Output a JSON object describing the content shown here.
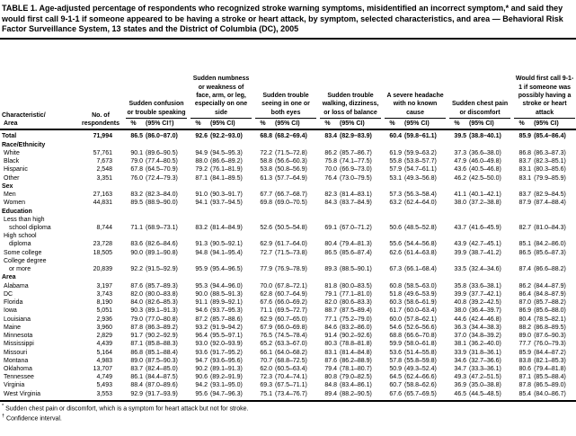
{
  "title": "TABLE 1. Age-adjusted percentage of respondents who recognized stroke warning symptoms, misidentified an incorrect symptom,* and said they would first call 9-1-1 if someone appeared to be having a stroke or heart attack, by symptom, selected characteristics, and area — Behavioral Risk Factor Surveillance System, 13 states and the District of Columbia (DC), 2005",
  "columns": {
    "stub": "Characteristic/\n Area",
    "respondents": "No. of\nrespondents",
    "groups": [
      {
        "label": "Sudden confusion or trouble speaking",
        "pct": "%",
        "ci": "(95% CI†)"
      },
      {
        "label": "Sudden numbness or weakness of face, arm, or leg, especially on one side",
        "pct": "%",
        "ci": "(95% CI)"
      },
      {
        "label": "Sudden trouble seeing in one or both eyes",
        "pct": "%",
        "ci": "(95% CI)"
      },
      {
        "label": "Sudden trouble walking, dizziness, or loss of balance",
        "pct": "%",
        "ci": "(95% CI)"
      },
      {
        "label": "A severe headache with no known cause",
        "pct": "%",
        "ci": "(95% CI)"
      },
      {
        "label": "Sudden chest pain or discomfort",
        "pct": "%",
        "ci": "(95% CI)"
      },
      {
        "label": "Would first call 9-1-1 if someone was possibly having a stroke or heart attack",
        "pct": "%",
        "ci": "(95% CI)"
      }
    ]
  },
  "rows": [
    {
      "s": "total",
      "l": "Total",
      "n": "71,994",
      "v": [
        "86.5",
        "(86.0–87.0)",
        "92.6",
        "(92.2–93.0)",
        "68.8",
        "(68.2–69.4)",
        "83.4",
        "(82.9–83.9)",
        "60.4",
        "(59.8–61.1)",
        "39.5",
        "(38.8–40.1)",
        "85.9",
        "(85.4–86.4)"
      ]
    },
    {
      "s": "section",
      "l": "Race/Ethnicity"
    },
    {
      "l": "White",
      "n": "57,761",
      "v": [
        "90.1",
        "(89.6–90.5)",
        "94.9",
        "(94.5–95.3)",
        "72.2",
        "(71.5–72.8)",
        "86.2",
        "(85.7–86.7)",
        "61.9",
        "(59.9–63.2)",
        "37.3",
        "(36.6–38.0)",
        "86.8",
        "(86.3–87.3)"
      ]
    },
    {
      "l": "Black",
      "n": "7,673",
      "v": [
        "79.0",
        "(77.4–80.5)",
        "88.0",
        "(86.6–89.2)",
        "58.8",
        "(56.6–60.3)",
        "75.8",
        "(74.1–77.5)",
        "55.8",
        "(53.8–57.7)",
        "47.9",
        "(46.0–49.8)",
        "83.7",
        "(82.3–85.1)"
      ]
    },
    {
      "l": "Hispanic",
      "n": "2,548",
      "v": [
        "67.8",
        "(64.5–70.9)",
        "79.2",
        "(76.1–81.9)",
        "53.8",
        "(50.8–56.9)",
        "70.0",
        "(66.9–73.0)",
        "57.9",
        "(54.7–61.1)",
        "43.6",
        "(40.5–46.8)",
        "83.1",
        "(80.3–85.6)"
      ]
    },
    {
      "l": "Other",
      "n": "3,351",
      "v": [
        "76.0",
        "(72.4–79.3)",
        "87.1",
        "(84.1–89.5)",
        "61.3",
        "(57.7–64.9)",
        "76.4",
        "(73.0–79.5)",
        "53.1",
        "(49.3–56.8)",
        "46.2",
        "(42.5–50.0)",
        "83.1",
        "(79.9–85.9)"
      ]
    },
    {
      "s": "section",
      "l": "Sex"
    },
    {
      "l": "Men",
      "n": "27,163",
      "v": [
        "83.2",
        "(82.3–84.0)",
        "91.0",
        "(90.3–91.7)",
        "67.7",
        "(66.7–68.7)",
        "82.3",
        "(81.4–83.1)",
        "57.3",
        "(56.3–58.4)",
        "41.1",
        "(40.1–42.1)",
        "83.7",
        "(82.9–84.5)"
      ]
    },
    {
      "l": "Women",
      "n": "44,831",
      "v": [
        "89.5",
        "(88.9–90.0)",
        "94.1",
        "(93.7–94.5)",
        "69.8",
        "(69.0–70.5)",
        "84.3",
        "(83.7–84.9)",
        "63.2",
        "(62.4–64.0)",
        "38.0",
        "(37.2–38.8)",
        "87.9",
        "(87.4–88.4)"
      ]
    },
    {
      "s": "section",
      "l": "Education"
    },
    {
      "l": "Less than high\nschool diploma",
      "n": "8,744",
      "v": [
        "71.1",
        "(68.9–73.1)",
        "83.2",
        "(81.4–84.9)",
        "52.6",
        "(50.5–54.8)",
        "69.1",
        "(67.0–71.2)",
        "50.6",
        "(48.5–52.8)",
        "43.7",
        "(41.6–45.9)",
        "82.7",
        "(81.0–84.3)"
      ]
    },
    {
      "l": "High school\ndiploma",
      "n": "23,728",
      "v": [
        "83.6",
        "(82.6–84.6)",
        "91.3",
        "(90.5–92.1)",
        "62.9",
        "(61.7–64.0)",
        "80.4",
        "(79.4–81.3)",
        "55.6",
        "(54.4–56.8)",
        "43.9",
        "(42.7–45.1)",
        "85.1",
        "(84.2–86.0)"
      ]
    },
    {
      "l": "Some college",
      "n": "18,505",
      "v": [
        "90.0",
        "(89.1–90.8)",
        "94.8",
        "(94.1–95.4)",
        "72.7",
        "(71.5–73.8)",
        "86.5",
        "(85.6–87.4)",
        "62.6",
        "(61.4–63.8)",
        "39.9",
        "(38.7–41.2)",
        "86.5",
        "(85.6–87.3)"
      ]
    },
    {
      "l": "College degree\nor more",
      "n": "20,839",
      "v": [
        "92.2",
        "(91.5–92.9)",
        "95.9",
        "(95.4–96.5)",
        "77.9",
        "(76.9–78.9)",
        "89.3",
        "(88.5–90.1)",
        "67.3",
        "(66.1–68.4)",
        "33.5",
        "(32.4–34.6)",
        "87.4",
        "(86.6–88.2)"
      ]
    },
    {
      "s": "section",
      "l": "Area"
    },
    {
      "l": "Alabama",
      "n": "3,197",
      "v": [
        "87.6",
        "(85.7–89.3)",
        "95.3",
        "(94.4–96.0)",
        "70.0",
        "(67.8–72.1)",
        "81.8",
        "(80.0–83.5)",
        "60.8",
        "(58.5–63.0)",
        "35.8",
        "(33.6–38.1)",
        "86.2",
        "(84.4–87.9)"
      ]
    },
    {
      "l": "DC",
      "n": "3,743",
      "v": [
        "82.0",
        "(80.0–83.8)",
        "90.0",
        "(88.5–91.3)",
        "62.8",
        "(60.7–64.9)",
        "79.1",
        "(77.1–81.0)",
        "51.8",
        "(49.6–53.9)",
        "39.9",
        "(37.7–42.1)",
        "86.4",
        "(84.8–87.9)"
      ]
    },
    {
      "l": "Florida",
      "n": "8,190",
      "v": [
        "84.0",
        "(82.6–85.3)",
        "91.1",
        "(89.9–92.1)",
        "67.6",
        "(66.0–69.2)",
        "82.0",
        "(80.6–83.3)",
        "60.3",
        "(58.6–61.9)",
        "40.8",
        "(39.2–42.5)",
        "87.0",
        "(85.7–88.2)"
      ]
    },
    {
      "l": "Iowa",
      "n": "5,051",
      "v": [
        "90.3",
        "(89.1–91.3)",
        "94.6",
        "(93.7–95.3)",
        "71.1",
        "(69.5–72.7)",
        "88.7",
        "(87.5–89.4)",
        "61.7",
        "(60.0–63.4)",
        "38.0",
        "(36.4–39.7)",
        "86.9",
        "(85.6–88.0)"
      ]
    },
    {
      "l": "Louisiana",
      "n": "2,936",
      "v": [
        "79.0",
        "(77.0–80.8)",
        "87.2",
        "(85.7–88.6)",
        "62.9",
        "(60.7–65.0)",
        "77.1",
        "(75.2–79.0)",
        "60.0",
        "(57.8–62.1)",
        "44.6",
        "(42.4–46.8)",
        "80.4",
        "(78.5–82.1)"
      ]
    },
    {
      "l": "Maine",
      "n": "3,960",
      "v": [
        "87.8",
        "(86.3–89.2)",
        "93.2",
        "(91.9–94.2)",
        "67.9",
        "(66.0–69.8)",
        "84.6",
        "(83.2–86.0)",
        "54.6",
        "(52.6–56.6)",
        "36.3",
        "(34.4–38.3)",
        "88.2",
        "(86.8–89.5)"
      ]
    },
    {
      "l": "Minnesota",
      "n": "2,829",
      "v": [
        "91.7",
        "(90.2–92.9)",
        "96.4",
        "(95.5–97.1)",
        "76.5",
        "(74.5–78.4)",
        "91.4",
        "(90.2–92.6)",
        "68.8",
        "(66.6–70.8)",
        "37.0",
        "(34.8–39.2)",
        "89.0",
        "(87.6–90.3)"
      ]
    },
    {
      "l": "Mississippi",
      "n": "4,439",
      "v": [
        "87.1",
        "(85.8–88.3)",
        "93.0",
        "(92.0–93.9)",
        "65.2",
        "(63.3–67.0)",
        "80.3",
        "(78.8–81.8)",
        "59.9",
        "(58.0–61.8)",
        "38.1",
        "(36.2–40.0)",
        "77.7",
        "(76.0–79.3)"
      ]
    },
    {
      "l": "Missouri",
      "n": "5,164",
      "v": [
        "86.8",
        "(85.1–88.4)",
        "93.6",
        "(91.7–95.2)",
        "66.1",
        "(64.0–68.2)",
        "83.1",
        "(81.4–84.8)",
        "53.6",
        "(51.4–55.8)",
        "33.9",
        "(31.8–36.1)",
        "85.9",
        "(84.4–87.2)"
      ]
    },
    {
      "l": "Montana",
      "n": "4,983",
      "v": [
        "89.0",
        "(87.5–90.3)",
        "94.7",
        "(93.6–95.6)",
        "70.7",
        "(68.8–72.5)",
        "87.6",
        "(86.2–88.9)",
        "57.8",
        "(55.8–59.8)",
        "34.6",
        "(32.7–36.6)",
        "83.8",
        "(82.1–85.3)"
      ]
    },
    {
      "l": "Oklahoma",
      "n": "13,707",
      "v": [
        "83.7",
        "(82.4–85.0)",
        "90.2",
        "(89.1–91.3)",
        "62.0",
        "(60.5–63.4)",
        "79.4",
        "(78.1–80.7)",
        "50.9",
        "(49.3–52.4)",
        "34.7",
        "(33.3–36.1)",
        "80.6",
        "(79.4–81.8)"
      ]
    },
    {
      "l": "Tennessee",
      "n": "4,749",
      "v": [
        "86.1",
        "(84.4–87.5)",
        "90.6",
        "(89.2–91.9)",
        "72.3",
        "(70.4–74.1)",
        "80.8",
        "(79.0–82.5)",
        "64.5",
        "(62.4–66.6)",
        "49.3",
        "(47.2–51.5)",
        "87.1",
        "(85.5–88.4)"
      ]
    },
    {
      "l": "Virginia",
      "n": "5,493",
      "v": [
        "88.4",
        "(87.0–89.6)",
        "94.2",
        "(93.1–95.0)",
        "69.3",
        "(67.5–71.1)",
        "84.8",
        "(83.4–86.1)",
        "60.7",
        "(58.8–62.6)",
        "36.9",
        "(35.0–38.8)",
        "87.8",
        "(86.5–89.0)"
      ]
    },
    {
      "l": "West Virginia",
      "n": "3,553",
      "v": [
        "92.9",
        "(91.7–93.9)",
        "95.6",
        "(94.7–96.3)",
        "75.1",
        "(73.4–76.7)",
        "89.4",
        "(88.2–90.5)",
        "67.6",
        "(65.7–69.5)",
        "46.5",
        "(44.5–48.5)",
        "85.4",
        "(84.0–86.7)"
      ]
    }
  ],
  "footnotes": [
    {
      "marker": "*",
      "text": "Sudden chest pain or discomfort, which is a symptom for heart attack but not for stroke."
    },
    {
      "marker": "†",
      "text": "Confidence interval."
    }
  ]
}
